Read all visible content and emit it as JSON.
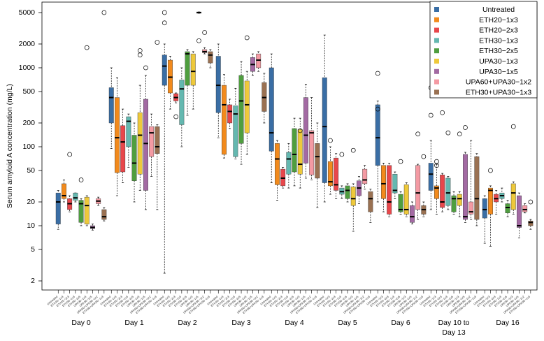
{
  "chart_data": {
    "type": "box",
    "ylabel": "Serum amyloid A concentration (mg/L)",
    "y_scale": "log",
    "ylim": [
      2,
      5500
    ],
    "y_ticks": [
      2,
      5,
      10,
      20,
      50,
      100,
      200,
      500,
      1000,
      2000,
      5000
    ],
    "legend_position": "top-right",
    "series": [
      {
        "name": "Untreated",
        "color": "#3a6ea5"
      },
      {
        "name": "ETH20−1x3",
        "color": "#f28a1c"
      },
      {
        "name": "ETH20−2x3",
        "color": "#e8474b"
      },
      {
        "name": "ETH30−1x3",
        "color": "#64b8b0"
      },
      {
        "name": "ETH30−2x5",
        "color": "#4f9e3f"
      },
      {
        "name": "UPA30−1x3",
        "color": "#eec93b"
      },
      {
        "name": "UPA30−1x5",
        "color": "#a36aa3"
      },
      {
        "name": "UPA60+UPA30−1x2",
        "color": "#f49aa3"
      },
      {
        "name": "ETH30+UPA30−1x3",
        "color": "#9a7152"
      }
    ],
    "category_labels": [
      "Untreated",
      "ETH20−1x3",
      "ETH20−2x3",
      "ETH30−1x3",
      "ETH30−2x5",
      "UPA30−1x3",
      "UPA30−1x5",
      "UPA60+UPA30−1x2",
      "ETH30+UPA30−1x3"
    ],
    "groups": [
      {
        "label": "Day 0",
        "boxes": [
          {
            "q1": 10.5,
            "median": 20,
            "q3": 26,
            "min": 9,
            "max": 28,
            "outliers": []
          },
          {
            "q1": 22,
            "median": 24,
            "q3": 34,
            "min": 20,
            "max": 38,
            "outliers": []
          },
          {
            "q1": 16,
            "median": 19,
            "q3": 22,
            "min": 15,
            "max": 24,
            "outliers": [
              80
            ]
          },
          {
            "q1": 21,
            "median": 22.5,
            "q3": 26,
            "min": 20,
            "max": 26,
            "outliers": []
          },
          {
            "q1": 11,
            "median": 19,
            "q3": 21,
            "min": 10,
            "max": 22,
            "outliers": [
              38
            ]
          },
          {
            "q1": 10.5,
            "median": 18,
            "q3": 23,
            "min": 10,
            "max": 24,
            "outliers": [
              1800
            ]
          },
          {
            "q1": 9.2,
            "median": 9.5,
            "q3": 10,
            "min": 8.8,
            "max": 10.5,
            "outliers": []
          },
          {
            "q1": 19,
            "median": 20.5,
            "q3": 22,
            "min": 18,
            "max": 23,
            "outliers": []
          },
          {
            "q1": 12,
            "median": 13,
            "q3": 16,
            "min": 11.5,
            "max": 17,
            "outliers": [
              5000
            ]
          }
        ]
      },
      {
        "label": "Day 1",
        "boxes": [
          {
            "q1": 200,
            "median": 420,
            "q3": 560,
            "min": 95,
            "max": 1000,
            "outliers": []
          },
          {
            "q1": 47,
            "median": 130,
            "q3": 420,
            "min": 24,
            "max": 750,
            "outliers": []
          },
          {
            "q1": 48,
            "median": 115,
            "q3": 185,
            "min": 35,
            "max": 300,
            "outliers": []
          },
          {
            "q1": 100,
            "median": 210,
            "q3": 240,
            "min": 55,
            "max": 260,
            "outliers": []
          },
          {
            "q1": 37,
            "median": 62,
            "q3": 140,
            "min": 20,
            "max": 200,
            "outliers": []
          },
          {
            "q1": 45,
            "median": 140,
            "q3": 270,
            "min": 28,
            "max": 600,
            "outliers": [
              1650,
              1450
            ]
          },
          {
            "q1": 28,
            "median": 110,
            "q3": 400,
            "min": 16,
            "max": 800,
            "outliers": [
              1000
            ]
          },
          {
            "q1": 75,
            "median": 150,
            "q3": 180,
            "min": 42,
            "max": 260,
            "outliers": []
          },
          {
            "q1": 82,
            "median": 100,
            "q3": 180,
            "min": 16,
            "max": 190,
            "outliers": [
              2100
            ]
          }
        ]
      },
      {
        "label": "Day 2",
        "boxes": [
          {
            "q1": 600,
            "median": 1050,
            "q3": 1450,
            "min": 2.5,
            "max": 2000,
            "outliers": [
              5000,
              3700
            ]
          },
          {
            "q1": 480,
            "median": 760,
            "q3": 1250,
            "min": 300,
            "max": 1400,
            "outliers": []
          },
          {
            "q1": 380,
            "median": 420,
            "q3": 470,
            "min": 360,
            "max": 480,
            "outliers": [
              240
            ]
          },
          {
            "q1": 190,
            "median": 540,
            "q3": 700,
            "min": 100,
            "max": 1000,
            "outliers": []
          },
          {
            "q1": 600,
            "median": 1500,
            "q3": 1600,
            "min": 250,
            "max": 1700,
            "outliers": []
          },
          {
            "q1": 600,
            "median": 900,
            "q3": 1500,
            "min": 300,
            "max": 1600,
            "outliers": []
          },
          {
            "q1": 4900,
            "median": 5000,
            "q3": 5100,
            "min": 4900,
            "max": 5100,
            "outliers": [
              2200
            ]
          },
          {
            "q1": 1550,
            "median": 1600,
            "q3": 1700,
            "min": 1500,
            "max": 1800,
            "outliers": [
              2800
            ]
          },
          {
            "q1": 1150,
            "median": 1450,
            "q3": 1600,
            "min": 1000,
            "max": 1700,
            "outliers": []
          }
        ]
      },
      {
        "label": "Day 3",
        "boxes": [
          {
            "q1": 270,
            "median": 600,
            "q3": 1400,
            "min": 130,
            "max": 2000,
            "outliers": []
          },
          {
            "q1": 80,
            "median": 340,
            "q3": 600,
            "min": 72,
            "max": 820,
            "outliers": []
          },
          {
            "q1": 200,
            "median": 280,
            "q3": 340,
            "min": 170,
            "max": 400,
            "outliers": []
          },
          {
            "q1": 75,
            "median": 260,
            "q3": 330,
            "min": 70,
            "max": 550,
            "outliers": []
          },
          {
            "q1": 110,
            "median": 380,
            "q3": 800,
            "min": 60,
            "max": 1200,
            "outliers": []
          },
          {
            "q1": 150,
            "median": 340,
            "q3": 680,
            "min": 80,
            "max": 900,
            "outliers": [
              2400
            ]
          },
          {
            "q1": 900,
            "median": 1100,
            "q3": 1350,
            "min": 800,
            "max": 1500,
            "outliers": []
          },
          {
            "q1": 1000,
            "median": 1250,
            "q3": 1500,
            "min": 900,
            "max": 1600,
            "outliers": []
          },
          {
            "q1": 280,
            "median": 420,
            "q3": 650,
            "min": 200,
            "max": 850,
            "outliers": []
          }
        ]
      },
      {
        "label": "Day 4",
        "boxes": [
          {
            "q1": 88,
            "median": 150,
            "q3": 1000,
            "min": 35,
            "max": 1500,
            "outliers": []
          },
          {
            "q1": 33,
            "median": 70,
            "q3": 110,
            "min": 21,
            "max": 120,
            "outliers": []
          },
          {
            "q1": 32,
            "median": 40,
            "q3": 52,
            "min": 30,
            "max": 55,
            "outliers": []
          },
          {
            "q1": 45,
            "median": 70,
            "q3": 85,
            "min": 30,
            "max": 110,
            "outliers": []
          },
          {
            "q1": 48,
            "median": 80,
            "q3": 170,
            "min": 32,
            "max": 230,
            "outliers": []
          },
          {
            "q1": 45,
            "median": 60,
            "q3": 165,
            "min": 30,
            "max": 230,
            "outliers": [
              160
            ]
          },
          {
            "q1": 62,
            "median": 140,
            "q3": 420,
            "min": 40,
            "max": 620,
            "outliers": []
          },
          {
            "q1": 44,
            "median": 150,
            "q3": 160,
            "min": 38,
            "max": 420,
            "outliers": []
          },
          {
            "q1": 40,
            "median": 75,
            "q3": 110,
            "min": 17,
            "max": 200,
            "outliers": []
          }
        ]
      },
      {
        "label": "Day 5",
        "boxes": [
          {
            "q1": 35,
            "median": 180,
            "q3": 750,
            "min": 20,
            "max": 2600,
            "outliers": []
          },
          {
            "q1": 32,
            "median": 36,
            "q3": 65,
            "min": 25,
            "max": 100,
            "outliers": [
              120
            ]
          },
          {
            "q1": 28,
            "median": 33,
            "q3": 72,
            "min": 22,
            "max": 82,
            "outliers": []
          },
          {
            "q1": 25,
            "median": 27,
            "q3": 30,
            "min": 22,
            "max": 32,
            "outliers": [
              80
            ]
          },
          {
            "q1": 22,
            "median": 28,
            "q3": 32,
            "min": 20,
            "max": 34,
            "outliers": []
          },
          {
            "q1": 18,
            "median": 22,
            "q3": 31,
            "min": 8.5,
            "max": 34,
            "outliers": [
              90
            ]
          },
          {
            "q1": 24,
            "median": 30,
            "q3": 37,
            "min": 19,
            "max": 42,
            "outliers": []
          },
          {
            "q1": 34,
            "median": 38,
            "q3": 52,
            "min": 29,
            "max": 58,
            "outliers": []
          },
          {
            "q1": 15,
            "median": 22,
            "q3": 27,
            "min": 11,
            "max": 29,
            "outliers": []
          }
        ]
      },
      {
        "label": "Day 6",
        "boxes": [
          {
            "q1": 58,
            "median": 130,
            "q3": 340,
            "min": 20,
            "max": 380,
            "outliers": [
              850,
              300
            ]
          },
          {
            "q1": 22,
            "median": 34,
            "q3": 58,
            "min": 15,
            "max": 62,
            "outliers": []
          },
          {
            "q1": 14,
            "median": 20,
            "q3": 58,
            "min": 13,
            "max": 62,
            "outliers": []
          },
          {
            "q1": 26,
            "median": 28,
            "q3": 45,
            "min": 22,
            "max": 48,
            "outliers": []
          },
          {
            "q1": 15,
            "median": 16,
            "q3": 25,
            "min": 14,
            "max": 27,
            "outliers": [
              65
            ]
          },
          {
            "q1": 14,
            "median": 16,
            "q3": 33,
            "min": 13,
            "max": 35,
            "outliers": []
          },
          {
            "q1": 11,
            "median": 13,
            "q3": 18,
            "min": 10.5,
            "max": 20,
            "outliers": []
          },
          {
            "q1": 16,
            "median": 26,
            "q3": 58,
            "min": 12,
            "max": 60,
            "outliers": [
              145
            ]
          },
          {
            "q1": 14,
            "median": 16,
            "q3": 18,
            "min": 13,
            "max": 20,
            "outliers": [
              75
            ]
          }
        ]
      },
      {
        "label": "Day 10 to\nDay 13",
        "boxes": [
          {
            "q1": 28,
            "median": 45,
            "q3": 62,
            "min": 16,
            "max": 120,
            "outliers": [
              560,
              250
            ]
          },
          {
            "q1": 22,
            "median": 30,
            "q3": 32,
            "min": 14,
            "max": 60,
            "outliers": [
              65,
              58
            ]
          },
          {
            "q1": 17,
            "median": 20,
            "q3": 44,
            "min": 15,
            "max": 46,
            "outliers": [
              270
            ]
          },
          {
            "q1": 18,
            "median": 26,
            "q3": 40,
            "min": 16,
            "max": 42,
            "outliers": [
              150
            ]
          },
          {
            "q1": 15,
            "median": 22,
            "q3": 24,
            "min": 14,
            "max": 27,
            "outliers": []
          },
          {
            "q1": 18,
            "median": 22,
            "q3": 25,
            "min": 13,
            "max": 27,
            "outliers": [
              145
            ]
          },
          {
            "q1": 12,
            "median": 13,
            "q3": 80,
            "min": 11,
            "max": 85,
            "outliers": [
              175
            ]
          },
          {
            "q1": 14,
            "median": 15,
            "q3": 20,
            "min": 12,
            "max": 120,
            "outliers": []
          },
          {
            "q1": 12,
            "median": 22,
            "q3": 75,
            "min": 10,
            "max": 82,
            "outliers": []
          }
        ]
      },
      {
        "label": "Day 16",
        "boxes": [
          {
            "q1": 12.5,
            "median": 16,
            "q3": 22,
            "min": 6,
            "max": 24,
            "outliers": []
          },
          {
            "q1": 14,
            "median": 28,
            "q3": 30,
            "min": 5.5,
            "max": 32,
            "outliers": [
              50
            ]
          },
          {
            "q1": 20,
            "median": 22,
            "q3": 25,
            "min": 14,
            "max": 28,
            "outliers": []
          },
          {
            "q1": 22,
            "median": 24,
            "q3": 26,
            "min": 20,
            "max": 30,
            "outliers": []
          },
          {
            "q1": 14.5,
            "median": 17,
            "q3": 19,
            "min": 13,
            "max": 21,
            "outliers": []
          },
          {
            "q1": 16,
            "median": 26,
            "q3": 34,
            "min": 14,
            "max": 36,
            "outliers": [
              180
            ]
          },
          {
            "q1": 9.5,
            "median": 10,
            "q3": 24,
            "min": 7,
            "max": 26,
            "outliers": []
          },
          {
            "q1": 15,
            "median": 16,
            "q3": 18,
            "min": 14.5,
            "max": 19,
            "outliers": []
          },
          {
            "q1": 10,
            "median": 11,
            "q3": 11.5,
            "min": 9,
            "max": 12,
            "outliers": [
              20
            ]
          }
        ]
      }
    ]
  }
}
